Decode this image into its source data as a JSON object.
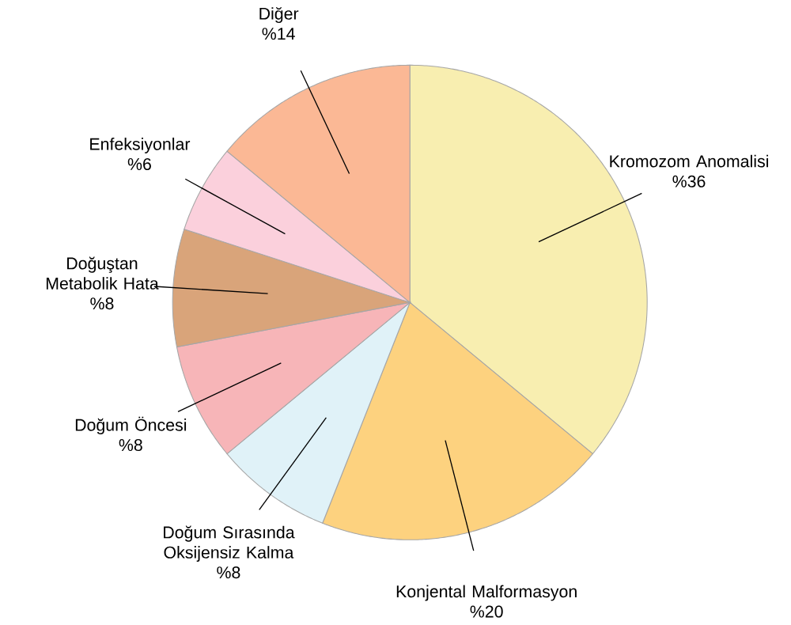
{
  "chart_data": {
    "type": "pie",
    "categories": [
      "Kromozom Anomalisi",
      "Konjental Malformasyon",
      "Doğum Sırasında Oksijensiz Kalma",
      "Doğum Öncesi",
      "Doğuştan Metabolik Hata",
      "Enfeksiyonlar",
      "Diğer"
    ],
    "values": [
      36,
      20,
      8,
      8,
      8,
      6,
      14
    ],
    "value_labels": [
      "%36",
      "%20",
      "%8",
      "%8",
      "%8",
      "%6",
      "%14"
    ],
    "colors": [
      "#f8eeb0",
      "#fdd27f",
      "#e0f2f8",
      "#f7b5b8",
      "#d9a47a",
      "#fbd0dc",
      "#fbb895"
    ]
  }
}
